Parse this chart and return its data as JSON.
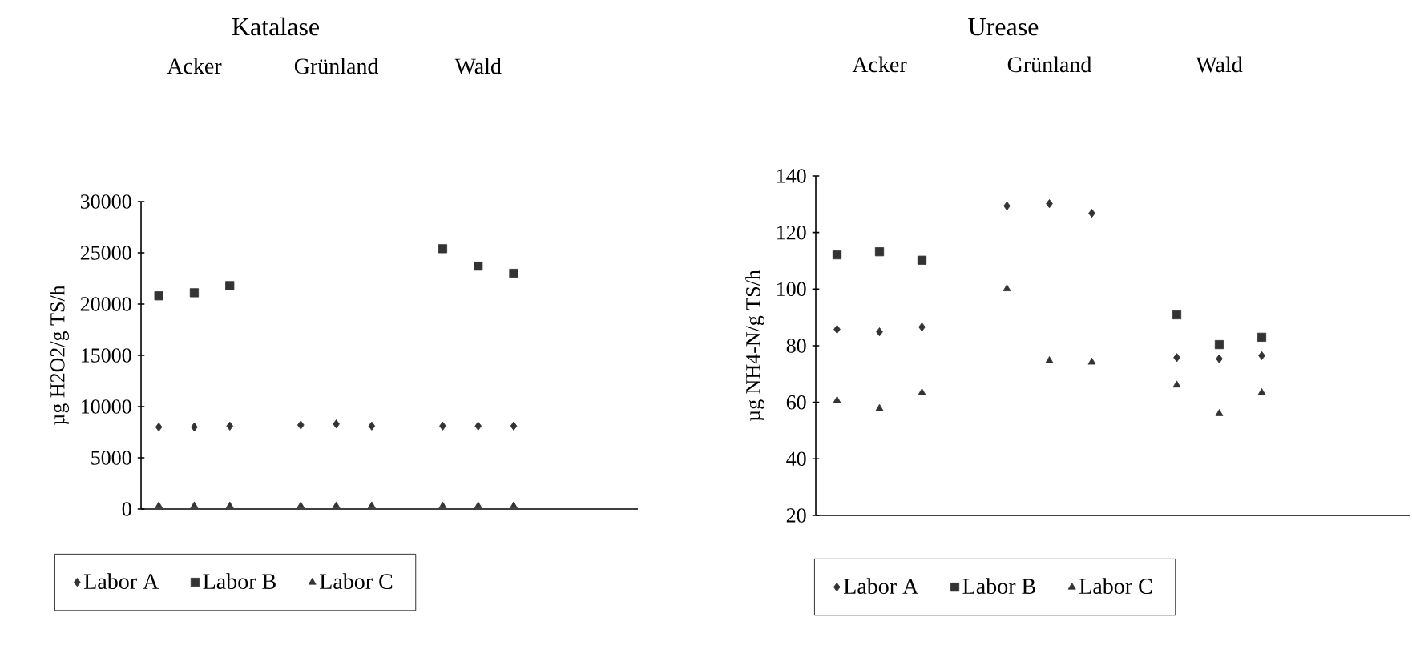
{
  "chart_data": [
    {
      "type": "scatter",
      "title": "Katalase",
      "ylabel": "µg H2O2/g TS/h",
      "annotations": [
        "Acker",
        "Grünland",
        "Wald"
      ],
      "categories": [
        null,
        null,
        null,
        null,
        null,
        null,
        null,
        null,
        null,
        null,
        null,
        null,
        null,
        null
      ],
      "ylim": [
        0,
        30000
      ],
      "yticks": [
        0,
        5000,
        10000,
        15000,
        20000,
        25000,
        30000
      ],
      "tick_labels": "y",
      "legend": "bottom",
      "series": [
        {
          "name": "Labor A",
          "color": "#333333",
          "marker": "diamond",
          "values": [
            8000,
            8000,
            8100,
            null,
            8200,
            8300,
            8100,
            null,
            8100,
            8100,
            8100,
            null,
            null,
            null
          ]
        },
        {
          "name": "Labor B",
          "color": "#333333",
          "marker": "square",
          "values": [
            20800,
            21100,
            21800,
            null,
            null,
            null,
            null,
            null,
            25400,
            23700,
            23000,
            null,
            null,
            null
          ]
        },
        {
          "name": "Labor C",
          "color": "#333333",
          "marker": "triangle",
          "values": [
            300,
            300,
            300,
            null,
            300,
            300,
            300,
            null,
            300,
            300,
            300,
            null,
            null,
            null
          ]
        }
      ]
    },
    {
      "type": "scatter",
      "title": "Urease",
      "ylabel": "µg NH4-N/g TS/h",
      "annotations": [
        "Acker",
        "Grünland",
        "Wald"
      ],
      "categories": [
        null,
        null,
        null,
        null,
        null,
        null,
        null,
        null,
        null,
        null,
        null,
        null,
        null,
        null
      ],
      "ylim": [
        20,
        140
      ],
      "yticks": [
        20,
        40,
        60,
        80,
        100,
        120,
        140
      ],
      "tick_labels": "y",
      "legend": "bottom",
      "series": [
        {
          "name": "Labor A",
          "color": "#333333",
          "marker": "diamond",
          "values": [
            85.8,
            84.9,
            86.6,
            null,
            129.4,
            130.2,
            126.8,
            null,
            75.8,
            75.4,
            76.5,
            null,
            null,
            null
          ]
        },
        {
          "name": "Labor B",
          "color": "#333333",
          "marker": "square",
          "values": [
            112.1,
            113.2,
            110.2,
            null,
            null,
            null,
            null,
            null,
            90.9,
            80.4,
            83.0,
            null,
            null,
            null
          ]
        },
        {
          "name": "Labor C",
          "color": "#333333",
          "marker": "triangle",
          "values": [
            60.6,
            57.8,
            63.4,
            null,
            100.1,
            74.7,
            74.2,
            null,
            66.1,
            56.0,
            63.4,
            null,
            null,
            null
          ]
        }
      ]
    }
  ]
}
